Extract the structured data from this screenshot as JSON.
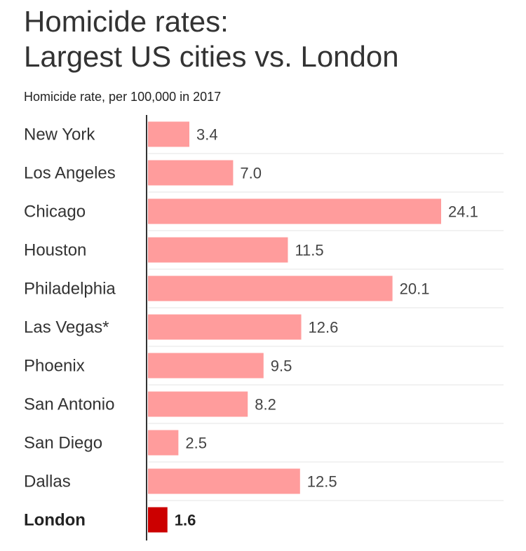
{
  "title_line1": "Homicide rates:",
  "title_line2": "Largest US cities vs. London",
  "subtitle": "Homicide rate, per 100,000 in 2017",
  "colors": {
    "bar": "#ff9c9c",
    "highlight_bar": "#cc0000",
    "axis": "#333333",
    "gridline": "#e6e6e6",
    "label": "#333333",
    "value": "#444444"
  },
  "chart_data": {
    "type": "bar",
    "orientation": "horizontal",
    "title": "Homicide rates: Largest US cities vs. London",
    "subtitle": "Homicide rate, per 100,000 in 2017",
    "categories": [
      "New York",
      "Los Angeles",
      "Chicago",
      "Houston",
      "Philadelphia",
      "Las Vegas*",
      "Phoenix",
      "San Antonio",
      "San Diego",
      "Dallas",
      "London"
    ],
    "values": [
      3.4,
      7.0,
      24.1,
      11.5,
      20.1,
      12.6,
      9.5,
      8.2,
      2.5,
      12.5,
      1.6
    ],
    "value_labels": [
      "3.4",
      "7.0",
      "24.1",
      "11.5",
      "20.1",
      "12.6",
      "9.5",
      "8.2",
      "2.5",
      "12.5",
      "1.6"
    ],
    "highlight": "London",
    "xlim": [
      0,
      24.1
    ],
    "grid": true,
    "legend": "none"
  }
}
